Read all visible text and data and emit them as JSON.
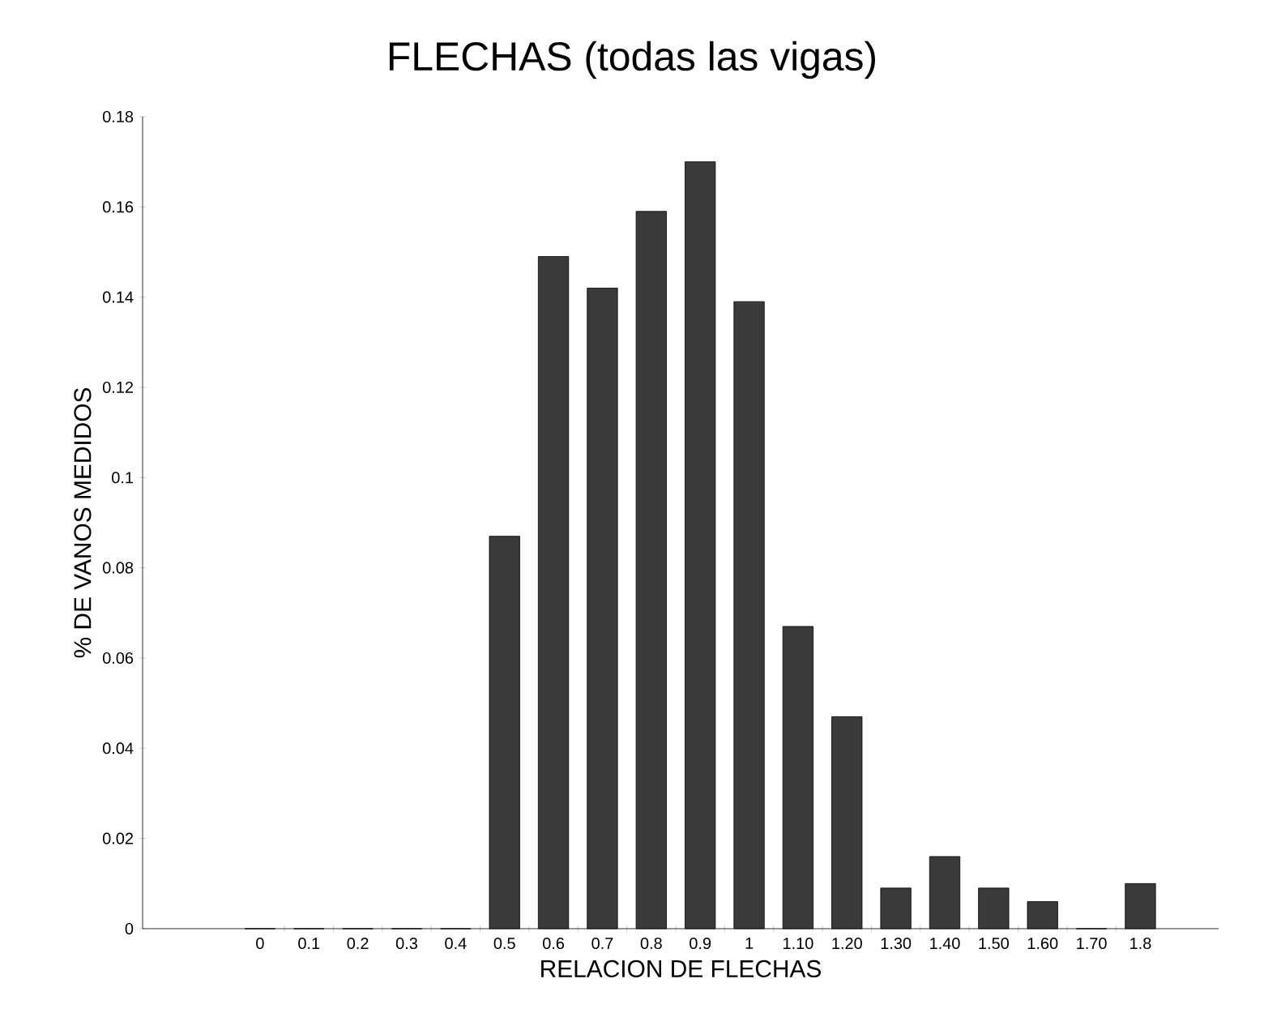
{
  "chart_data": {
    "type": "bar",
    "title": "FLECHAS (todas las vigas)",
    "xlabel": "RELACION DE FLECHAS",
    "ylabel": "% DE VANOS MEDIDOS",
    "categories": [
      "0",
      "0.1",
      "0.2",
      "0.3",
      "0.4",
      "0.5",
      "0.6",
      "0.7",
      "0.8",
      "0.9",
      "1",
      "1.10",
      "1.20",
      "1.30",
      "1.40",
      "1.50",
      "1.60",
      "1.70",
      "1.8"
    ],
    "values": [
      0,
      0,
      0,
      0,
      0,
      0.087,
      0.149,
      0.142,
      0.159,
      0.17,
      0.139,
      0.067,
      0.047,
      0.009,
      0.016,
      0.009,
      0.006,
      0,
      0.01
    ],
    "color": "#3a3a3a",
    "ylim": [
      0,
      0.18
    ],
    "yticks": [
      0,
      0.02,
      0.04,
      0.06,
      0.08,
      0.1,
      0.12,
      0.14,
      0.16,
      0.18
    ],
    "grid": false
  }
}
